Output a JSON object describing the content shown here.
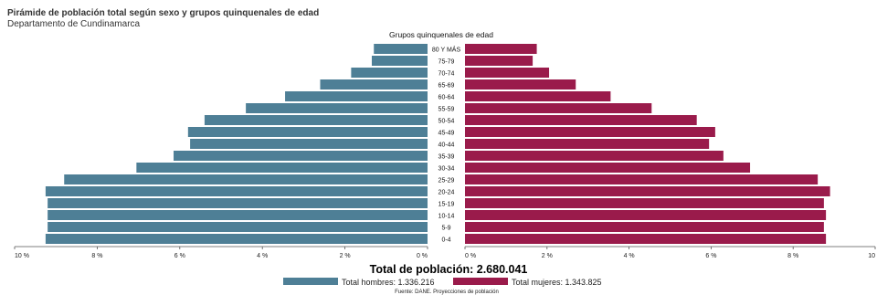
{
  "header": {
    "title": "Pirámide de población total según sexo y grupos quinquenales de edad",
    "subtitle": "Departamento de Cundinamarca"
  },
  "chart_data": {
    "type": "bar",
    "orientation": "horizontal-pyramid",
    "categories_title": "Grupos quinquenales de edad",
    "categories": [
      "80 Y MÁS",
      "75-79",
      "70-74",
      "65-69",
      "60-64",
      "55-59",
      "50-54",
      "45-49",
      "40-44",
      "35-39",
      "30-34",
      "25-29",
      "20-24",
      "15-19",
      "10-14",
      "5-9",
      "0-4"
    ],
    "series": [
      {
        "name": "Total hombres: 1.336.216",
        "color": "#4e7f96",
        "side": "left",
        "values": [
          1.3,
          1.35,
          1.85,
          2.6,
          3.45,
          4.4,
          5.4,
          5.8,
          5.75,
          6.15,
          7.05,
          8.8,
          9.25,
          9.2,
          9.2,
          9.2,
          9.25
        ]
      },
      {
        "name": "Total mujeres: 1.343.825",
        "color": "#9a1b4b",
        "side": "right",
        "values": [
          1.75,
          1.65,
          2.05,
          2.7,
          3.55,
          4.55,
          5.65,
          6.1,
          5.95,
          6.3,
          6.95,
          8.6,
          8.9,
          8.75,
          8.8,
          8.75,
          8.8
        ]
      }
    ],
    "left_axis": {
      "ticks": [
        10,
        8,
        6,
        4,
        2,
        0
      ],
      "tick_labels": [
        "10 %",
        "8 %",
        "6 %",
        "4 %",
        "2 %",
        "0 %"
      ],
      "range": [
        10,
        0
      ]
    },
    "right_axis": {
      "ticks": [
        0,
        2,
        4,
        6,
        8,
        10
      ],
      "tick_labels": [
        "0 %",
        "2 %",
        "4 %",
        "6 %",
        "8 %",
        "10"
      ],
      "range": [
        0,
        10
      ]
    },
    "total_label": "Total de población: 2.680.041",
    "legend": [
      "Total hombres: 1.336.216",
      "Total mujeres: 1.343.825"
    ],
    "legend_position": "bottom",
    "source": "Fuente: DANE. Proyecciones de población",
    "grid": false
  }
}
